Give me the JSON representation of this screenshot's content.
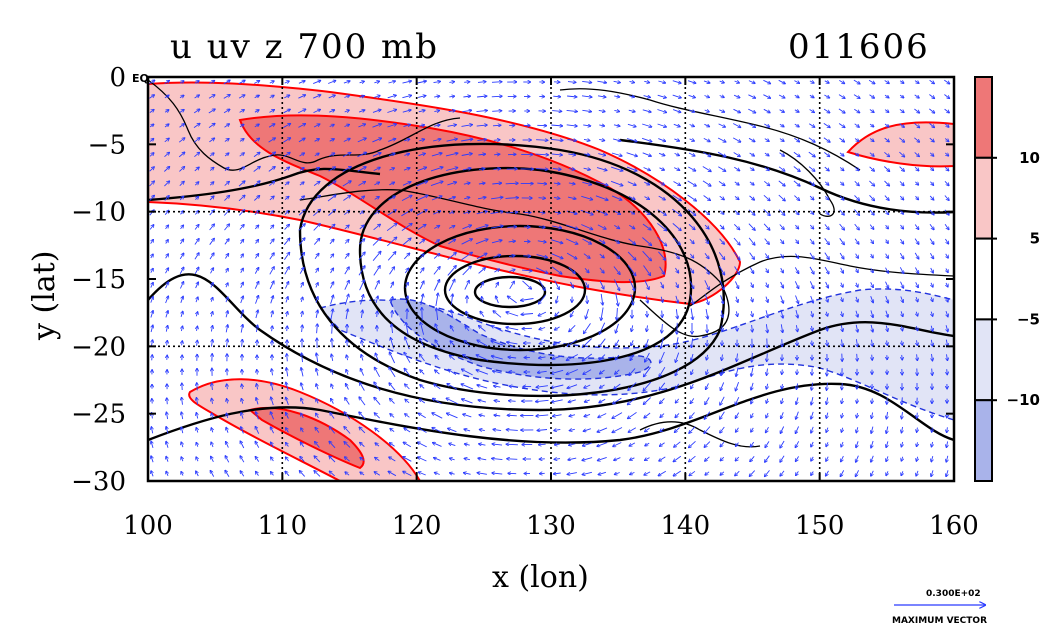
{
  "chart_data": {
    "type": "heatmap",
    "title": "u uv z 700 mb",
    "title_right": "011606",
    "xlabel": "x (lon)",
    "ylabel": "y (lat)",
    "xlim": [
      100,
      160
    ],
    "ylim": [
      -30,
      0
    ],
    "x_ticks": [
      100,
      110,
      120,
      130,
      140,
      150,
      160
    ],
    "y_ticks": [
      0,
      -5,
      -10,
      -15,
      -20,
      -25,
      -30
    ],
    "y_tick_labels": [
      "0",
      "−5",
      "−10",
      "−15",
      "−20",
      "−25",
      "−30"
    ],
    "top_left_label": "EQ",
    "grid": true,
    "colorbar": {
      "levels": [
        {
          "label": "",
          "color": "#ee7777"
        },
        {
          "label": "10",
          "color": "#f9c6c6"
        },
        {
          "label": "5",
          "color": "#ffffff"
        },
        {
          "label": "−5",
          "color": "#e1e4f6"
        },
        {
          "label": "−10",
          "color": "#a9b3ea"
        }
      ]
    },
    "vector_key": {
      "value_label": "0.300E+02",
      "caption": "MAXIMUM VECTOR"
    },
    "colors": {
      "strong_positive": "#ee7777",
      "weak_positive": "#f9c6c6",
      "weak_negative": "#e1e4f6",
      "strong_negative": "#a9b3ea",
      "positive_contour": "#ff0000",
      "negative_contour": "#2233dd",
      "vector": "#2a3bff",
      "coast": "#000000"
    }
  }
}
